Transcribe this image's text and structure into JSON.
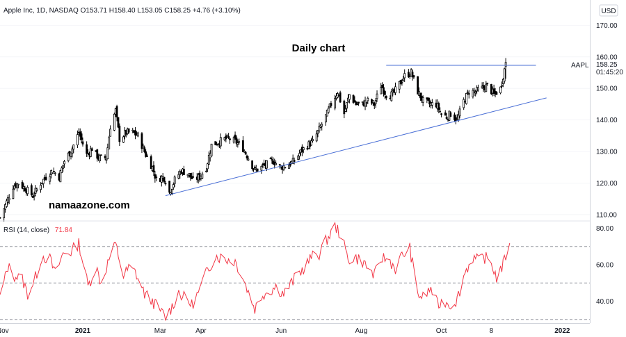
{
  "header": {
    "info": "Apple Inc, 1D, NASDAQ  O153.71  H158.40  L153.05  C158.25  +4.76 (+3.10%)",
    "currency_button": "USD"
  },
  "annotations": {
    "title": "Daily chart",
    "watermark": "namaazone.com",
    "price_tag_symbol": "AAPL",
    "price_tag_value": "158.25",
    "price_tag_countdown": "01:45:20"
  },
  "rsi_panel": {
    "label": "RSI (14, close)",
    "value": "71.84"
  },
  "colors": {
    "up": "#000000",
    "down": "#000000",
    "trendline": "#4a6fd6",
    "rsi": "#f23645",
    "grid": "#e0e3eb"
  },
  "chart_data": [
    {
      "type": "candlestick",
      "title": "",
      "ylim": [
        108,
        178
      ],
      "y_ticks": [
        "170.00",
        "160.00",
        "150.00",
        "140.00",
        "130.00",
        "120.00",
        "110.00"
      ],
      "y_tick_values": [
        170,
        160,
        150,
        140,
        130,
        120,
        110
      ],
      "x_ticks": [
        "Nov",
        "2021",
        "Mar",
        "Apr",
        "Jun",
        "Aug",
        "Oct",
        "8",
        "2022"
      ],
      "x_tick_dates": [
        "2020-11-01",
        "2021-01-01",
        "2021-03-01",
        "2021-04-01",
        "2021-06-01",
        "2021-08-01",
        "2021-10-01",
        "2021-11-08",
        "2022-01-01"
      ],
      "xlim": [
        "2020-10-30",
        "2022-01-22"
      ],
      "close_path": [
        [
          "2020-10-30",
          109
        ],
        [
          "2020-11-04",
          114
        ],
        [
          "2020-11-09",
          119
        ],
        [
          "2020-11-13",
          120
        ],
        [
          "2020-11-19",
          118
        ],
        [
          "2020-11-24",
          116
        ],
        [
          "2020-11-30",
          120
        ],
        [
          "2020-12-04",
          122
        ],
        [
          "2020-12-09",
          124
        ],
        [
          "2020-12-14",
          122
        ],
        [
          "2020-12-18",
          127
        ],
        [
          "2020-12-24",
          131
        ],
        [
          "2020-12-29",
          136
        ],
        [
          "2021-01-04",
          129
        ],
        [
          "2021-01-08",
          131
        ],
        [
          "2021-01-13",
          128
        ],
        [
          "2021-01-19",
          128
        ],
        [
          "2021-01-22",
          138
        ],
        [
          "2021-01-26",
          143
        ],
        [
          "2021-01-29",
          134
        ],
        [
          "2021-02-03",
          136
        ],
        [
          "2021-02-08",
          136
        ],
        [
          "2021-02-12",
          135
        ],
        [
          "2021-02-18",
          129
        ],
        [
          "2021-02-23",
          125
        ],
        [
          "2021-02-26",
          121
        ],
        [
          "2021-03-03",
          122
        ],
        [
          "2021-03-05",
          121
        ],
        [
          "2021-03-08",
          117
        ],
        [
          "2021-03-12",
          121
        ],
        [
          "2021-03-17",
          124
        ],
        [
          "2021-03-22",
          123
        ],
        [
          "2021-03-26",
          121
        ],
        [
          "2021-03-31",
          122
        ],
        [
          "2021-04-05",
          125
        ],
        [
          "2021-04-09",
          132
        ],
        [
          "2021-04-14",
          133
        ],
        [
          "2021-04-19",
          134
        ],
        [
          "2021-04-23",
          134
        ],
        [
          "2021-04-28",
          133
        ],
        [
          "2021-05-03",
          131
        ],
        [
          "2021-05-07",
          128
        ],
        [
          "2021-05-12",
          124
        ],
        [
          "2021-05-17",
          125
        ],
        [
          "2021-05-21",
          126
        ],
        [
          "2021-05-26",
          127
        ],
        [
          "2021-06-01",
          125
        ],
        [
          "2021-06-07",
          126
        ],
        [
          "2021-06-11",
          127
        ],
        [
          "2021-06-16",
          130
        ],
        [
          "2021-06-21",
          132
        ],
        [
          "2021-06-25",
          133
        ],
        [
          "2021-06-30",
          137
        ],
        [
          "2021-07-06",
          142
        ],
        [
          "2021-07-09",
          145
        ],
        [
          "2021-07-14",
          149
        ],
        [
          "2021-07-19",
          142
        ],
        [
          "2021-07-23",
          148
        ],
        [
          "2021-07-28",
          145
        ],
        [
          "2021-08-02",
          145
        ],
        [
          "2021-08-06",
          146
        ],
        [
          "2021-08-11",
          145
        ],
        [
          "2021-08-16",
          151
        ],
        [
          "2021-08-20",
          148
        ],
        [
          "2021-08-25",
          148
        ],
        [
          "2021-08-31",
          152
        ],
        [
          "2021-09-03",
          154
        ],
        [
          "2021-09-08",
          155
        ],
        [
          "2021-09-13",
          149
        ],
        [
          "2021-09-17",
          146
        ],
        [
          "2021-09-22",
          145
        ],
        [
          "2021-09-27",
          145
        ],
        [
          "2021-10-01",
          142
        ],
        [
          "2021-10-05",
          141
        ],
        [
          "2021-10-08",
          142
        ],
        [
          "2021-10-13",
          140
        ],
        [
          "2021-10-18",
          146
        ],
        [
          "2021-10-22",
          149
        ],
        [
          "2021-10-27",
          149
        ],
        [
          "2021-11-01",
          150
        ],
        [
          "2021-11-05",
          151
        ],
        [
          "2021-11-10",
          148
        ],
        [
          "2021-11-15",
          150
        ],
        [
          "2021-11-19",
          158
        ]
      ],
      "trendlines": [
        {
          "from": [
            "2021-03-05",
            116
          ],
          "to": [
            "2021-12-20",
            147
          ]
        },
        {
          "from": [
            "2021-08-20",
            157.3
          ],
          "to": [
            "2021-12-12",
            157.3
          ]
        }
      ],
      "last_price": 158.25
    },
    {
      "type": "line",
      "title": "",
      "ylim": [
        28,
        84
      ],
      "y_ticks": [
        "80.00",
        "60.00",
        "40.00"
      ],
      "y_tick_values": [
        80,
        60,
        40
      ],
      "levels": [
        70,
        50,
        30
      ],
      "series": [
        {
          "values": [
            [
              "2020-10-30",
              42
            ],
            [
              "2020-11-05",
              59
            ],
            [
              "2020-11-10",
              54
            ],
            [
              "2020-11-16",
              52
            ],
            [
              "2020-11-20",
              44
            ],
            [
              "2020-11-26",
              53
            ],
            [
              "2020-12-01",
              65
            ],
            [
              "2020-12-07",
              63
            ],
            [
              "2020-12-11",
              55
            ],
            [
              "2020-12-17",
              66
            ],
            [
              "2020-12-23",
              67
            ],
            [
              "2020-12-29",
              72
            ],
            [
              "2021-01-05",
              48
            ],
            [
              "2021-01-11",
              59
            ],
            [
              "2021-01-15",
              50
            ],
            [
              "2021-01-21",
              63
            ],
            [
              "2021-01-26",
              71
            ],
            [
              "2021-02-01",
              54
            ],
            [
              "2021-02-05",
              58
            ],
            [
              "2021-02-10",
              56
            ],
            [
              "2021-02-17",
              44
            ],
            [
              "2021-02-23",
              40
            ],
            [
              "2021-03-01",
              35
            ],
            [
              "2021-03-05",
              31
            ],
            [
              "2021-03-10",
              37
            ],
            [
              "2021-03-15",
              45
            ],
            [
              "2021-03-19",
              42
            ],
            [
              "2021-03-25",
              38
            ],
            [
              "2021-03-31",
              46
            ],
            [
              "2021-04-06",
              57
            ],
            [
              "2021-04-12",
              65
            ],
            [
              "2021-04-16",
              64
            ],
            [
              "2021-04-21",
              63
            ],
            [
              "2021-04-27",
              62
            ],
            [
              "2021-05-03",
              53
            ],
            [
              "2021-05-07",
              45
            ],
            [
              "2021-05-12",
              36
            ],
            [
              "2021-05-18",
              44
            ],
            [
              "2021-05-24",
              46
            ],
            [
              "2021-05-28",
              48
            ],
            [
              "2021-06-03",
              44
            ],
            [
              "2021-06-08",
              49
            ],
            [
              "2021-06-14",
              55
            ],
            [
              "2021-06-18",
              58
            ],
            [
              "2021-06-24",
              64
            ],
            [
              "2021-06-30",
              66
            ],
            [
              "2021-07-06",
              74
            ],
            [
              "2021-07-12",
              81
            ],
            [
              "2021-07-16",
              77
            ],
            [
              "2021-07-22",
              63
            ],
            [
              "2021-07-27",
              64
            ],
            [
              "2021-08-02",
              62
            ],
            [
              "2021-08-06",
              58
            ],
            [
              "2021-08-11",
              54
            ],
            [
              "2021-08-17",
              64
            ],
            [
              "2021-08-23",
              62
            ],
            [
              "2021-08-27",
              58
            ],
            [
              "2021-09-01",
              65
            ],
            [
              "2021-09-07",
              69
            ],
            [
              "2021-09-13",
              44
            ],
            [
              "2021-09-17",
              42
            ],
            [
              "2021-09-23",
              47
            ],
            [
              "2021-09-28",
              38
            ],
            [
              "2021-10-04",
              40
            ],
            [
              "2021-10-08",
              38
            ],
            [
              "2021-10-13",
              41
            ],
            [
              "2021-10-19",
              56
            ],
            [
              "2021-10-25",
              64
            ],
            [
              "2021-10-29",
              62
            ],
            [
              "2021-11-03",
              64
            ],
            [
              "2021-11-08",
              61
            ],
            [
              "2021-11-12",
              53
            ],
            [
              "2021-11-17",
              60
            ],
            [
              "2021-11-22",
              72
            ]
          ]
        }
      ]
    }
  ]
}
